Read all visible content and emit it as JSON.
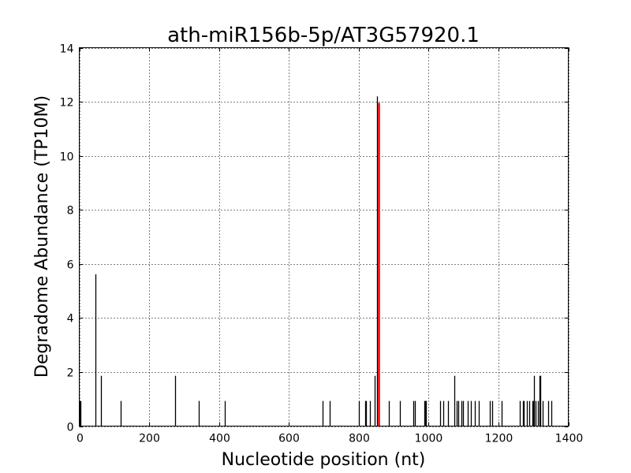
{
  "chart_data": {
    "type": "bar",
    "title": "ath-miR156b-5p/AT3G57920.1",
    "xlabel": "Nucleotide position (nt)",
    "ylabel": "Degradome Abundance (TP10M)",
    "xlim": [
      0,
      1400
    ],
    "ylim": [
      0,
      14
    ],
    "xticks": [
      0,
      200,
      400,
      600,
      800,
      1000,
      1200,
      1400
    ],
    "yticks": [
      0,
      2,
      4,
      6,
      8,
      10,
      12,
      14
    ],
    "grid": true,
    "series": [
      {
        "color": "#000000",
        "x": [
          1,
          3,
          46,
          61,
          118,
          274,
          342,
          416,
          696,
          716,
          800,
          819,
          820,
          833,
          846,
          853,
          858,
          886,
          917,
          956,
          960,
          988,
          990,
          992,
          1032,
          1043,
          1055,
          1073,
          1080,
          1086,
          1095,
          1099,
          1112,
          1122,
          1132,
          1143,
          1175,
          1182,
          1210,
          1261,
          1270,
          1272,
          1281,
          1288,
          1297,
          1299,
          1301,
          1306,
          1313,
          1317,
          1319,
          1326,
          1343,
          1351
        ],
        "y": [
          0.93,
          0.93,
          5.62,
          1.86,
          0.93,
          1.86,
          0.93,
          0.93,
          0.93,
          0.93,
          0.93,
          0.93,
          0.93,
          0.93,
          1.86,
          12.2,
          6.5,
          0.93,
          0.93,
          0.93,
          0.93,
          0.93,
          0.93,
          0.93,
          0.93,
          0.93,
          0.93,
          1.86,
          0.93,
          0.93,
          0.93,
          0.93,
          0.93,
          0.93,
          0.93,
          0.93,
          0.93,
          0.93,
          0.93,
          0.93,
          0.93,
          0.93,
          0.93,
          0.93,
          0.93,
          0.93,
          1.86,
          0.93,
          0.93,
          1.86,
          1.86,
          0.93,
          0.93,
          0.93
        ]
      },
      {
        "color": "#ff0000",
        "x": [
          856
        ],
        "y": [
          11.96
        ]
      }
    ]
  }
}
